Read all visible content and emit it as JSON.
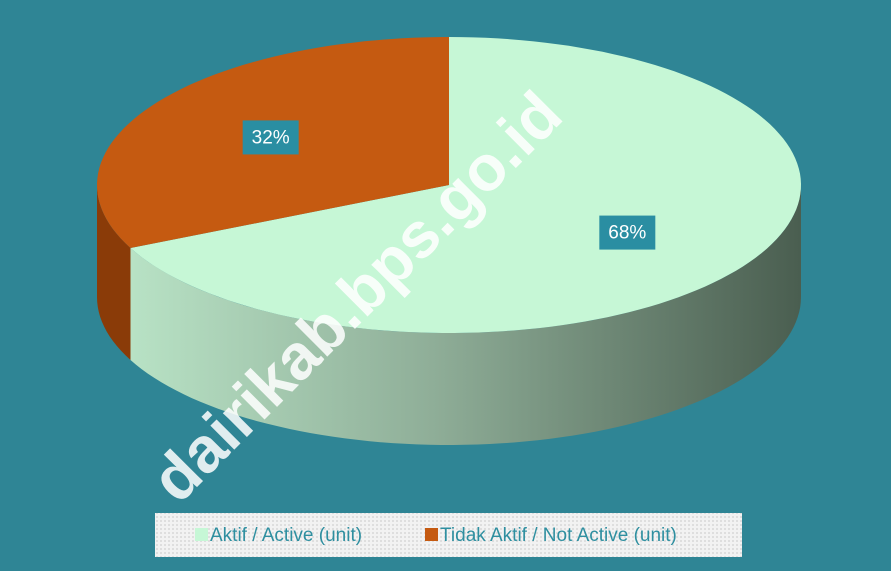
{
  "chart_data": {
    "type": "pie",
    "categories": [
      "Aktif / Active (unit)",
      "Tidak Aktif  / Not Active (unit)"
    ],
    "values": [
      68,
      32
    ],
    "value_labels": [
      "68%",
      "32%"
    ],
    "colors": [
      "#c6f7d6",
      "#c55a11"
    ],
    "watermark": "dairikab.bps.go.id",
    "legend": "bottom"
  }
}
